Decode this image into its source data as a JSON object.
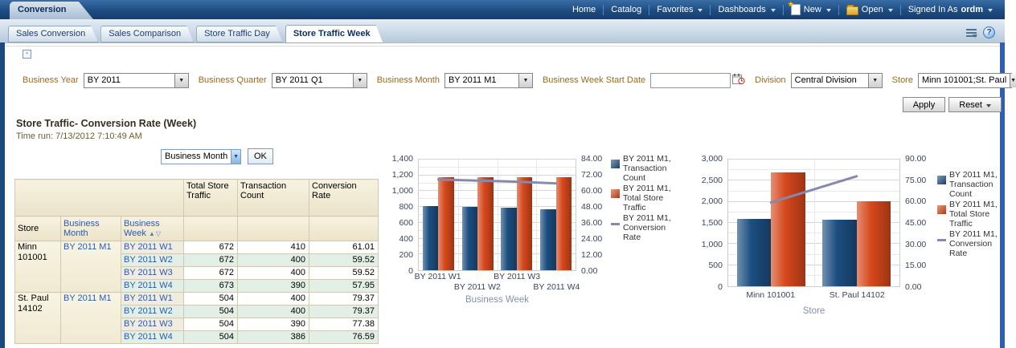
{
  "banner": {
    "brand_tab": "Conversion",
    "nav": [
      {
        "label": "Home"
      },
      {
        "label": "Catalog"
      },
      {
        "label": "Favorites"
      },
      {
        "label": "Dashboards"
      },
      {
        "label": "New",
        "icon": "new-document-icon"
      },
      {
        "label": "Open",
        "icon": "open-folder-icon"
      }
    ],
    "signed_in_label": "Signed In As",
    "user": "ordm"
  },
  "tabs": [
    {
      "label": "Sales Conversion",
      "active": false
    },
    {
      "label": "Sales Comparison",
      "active": false
    },
    {
      "label": "Store Traffic Day",
      "active": false
    },
    {
      "label": "Store Traffic Week",
      "active": true
    }
  ],
  "misc": {
    "collapse_glyph": "-",
    "help_glyph": "?",
    "dropdown_arrow": "▼",
    "sort_asc": "▲",
    "sort_desc": "▽"
  },
  "icons": [
    "page-options-icon",
    "help-icon",
    "new-document-icon",
    "open-folder-icon",
    "date-picker-icon"
  ],
  "prompts": {
    "fields": [
      {
        "label": "Business Year",
        "value": "BY 2011",
        "type": "select"
      },
      {
        "label": "Business Quarter",
        "value": "BY 2011 Q1",
        "type": "select"
      },
      {
        "label": "Business Month",
        "value": "BY 2011 M1",
        "type": "select"
      },
      {
        "label": "Business Week Start Date",
        "value": "",
        "type": "date"
      },
      {
        "label": "Division",
        "value": "Central Division",
        "type": "select"
      },
      {
        "label": "Store",
        "value": "Minn 101001;St. Paul",
        "type": "select"
      }
    ],
    "apply_label": "Apply",
    "reset_label": "Reset"
  },
  "report": {
    "title": "Store Traffic- Conversion Rate (Week)",
    "time_run": "Time run: 7/13/2012 7:10:49 AM",
    "view_selector": {
      "value": "Business Month",
      "ok_label": "OK"
    }
  },
  "table": {
    "measure_headers": [
      "Total Store Traffic",
      "Transaction Count",
      "Conversion Rate"
    ],
    "dim_headers": [
      "Store",
      "Business Month",
      "Business Week"
    ],
    "groups": [
      {
        "store": "Minn 101001",
        "month": "BY 2011 M1",
        "rows": [
          {
            "week": "BY 2011 W1",
            "traffic": "672",
            "count": "410",
            "rate": "61.01"
          },
          {
            "week": "BY 2011 W2",
            "traffic": "672",
            "count": "400",
            "rate": "59.52"
          },
          {
            "week": "BY 2011 W3",
            "traffic": "672",
            "count": "400",
            "rate": "59.52"
          },
          {
            "week": "BY 2011 W4",
            "traffic": "673",
            "count": "390",
            "rate": "57.95"
          }
        ]
      },
      {
        "store": "St. Paul 14102",
        "month": "BY 2011 M1",
        "rows": [
          {
            "week": "BY 2011 W1",
            "traffic": "504",
            "count": "400",
            "rate": "79.37"
          },
          {
            "week": "BY 2011 W2",
            "traffic": "504",
            "count": "400",
            "rate": "79.37"
          },
          {
            "week": "BY 2011 W3",
            "traffic": "504",
            "count": "390",
            "rate": "77.38"
          },
          {
            "week": "BY 2011 W4",
            "traffic": "504",
            "count": "386",
            "rate": "76.59"
          }
        ]
      }
    ]
  },
  "chart_data": [
    {
      "type": "bar",
      "subtype": "combo-bar-line-dual-axis",
      "categories": [
        "BY 2011 W1",
        "BY 2011 W2",
        "BY 2011 W3",
        "BY 2011 W4"
      ],
      "series": [
        {
          "name": "BY 2011 M1, Transaction Count",
          "type": "bar",
          "axis": "left",
          "color": "#1C4E80",
          "values": [
            810,
            800,
            790,
            776
          ]
        },
        {
          "name": "BY 2011 M1, Total Store Traffic",
          "type": "bar",
          "axis": "left",
          "color": "#D6481C",
          "values": [
            1176,
            1176,
            1176,
            1177
          ]
        },
        {
          "name": "BY 2011 M1, Conversion Rate",
          "type": "line",
          "axis": "right",
          "color": "#8888AE",
          "values": [
            68.88,
            68.03,
            67.18,
            65.93
          ]
        }
      ],
      "title": "",
      "xlabel": "Business Week",
      "left_axis": {
        "min": 0,
        "max": 1400,
        "step": 200
      },
      "right_axis": {
        "min": 0,
        "max": 84,
        "step": 12,
        "decimals": 2
      },
      "grid": true,
      "legend_position": "right",
      "stagger_labels": true
    },
    {
      "type": "bar",
      "subtype": "combo-bar-line-dual-axis",
      "categories": [
        "Minn 101001",
        "St. Paul 14102"
      ],
      "series": [
        {
          "name": "BY 2011 M1, Transaction Count",
          "type": "bar",
          "axis": "left",
          "color": "#1C4E80",
          "values": [
            1600,
            1576
          ]
        },
        {
          "name": "BY 2011 M1, Total Store Traffic",
          "type": "bar",
          "axis": "left",
          "color": "#D6481C",
          "values": [
            2689,
            2016
          ]
        },
        {
          "name": "BY 2011 M1, Conversion Rate",
          "type": "line",
          "axis": "right",
          "color": "#8888AE",
          "values": [
            59.5,
            78.17
          ]
        }
      ],
      "title": "",
      "xlabel": "Store",
      "left_axis": {
        "min": 0,
        "max": 3000,
        "step": 500
      },
      "right_axis": {
        "min": 0,
        "max": 90,
        "step": 15,
        "decimals": 2
      },
      "grid": true,
      "legend_position": "right",
      "stagger_labels": false
    }
  ],
  "colors": {
    "bar_blue": "#1C4E80",
    "bar_red": "#D6481C",
    "line": "#8888AE",
    "link": "#2B5BAB",
    "prompt_label": "#9A6A1F",
    "banner": "#1D4C82",
    "left_rail": "#1B4A7D",
    "right_rail": "#2E5FB2"
  }
}
